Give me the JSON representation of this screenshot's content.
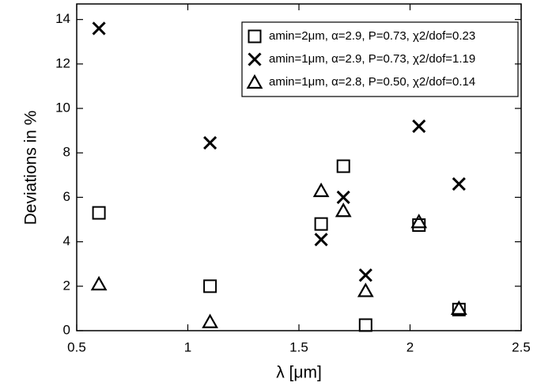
{
  "chart_data": {
    "type": "scatter",
    "xlabel": "λ [μm]",
    "ylabel": "Deviations in %",
    "xlim": [
      0.5,
      2.5
    ],
    "xticks": [
      0.5,
      1,
      1.5,
      2,
      2.5
    ],
    "ylim": [
      0,
      14.7
    ],
    "yticks": [
      0,
      2,
      4,
      6,
      8,
      10,
      12,
      14
    ],
    "legend": "upper right",
    "series": [
      {
        "name": "amin=2μm, α=2.9, P=0.73, χ2/dof=0.23",
        "marker": "square",
        "color": "#000000",
        "x": [
          0.6,
          1.1,
          1.6,
          1.7,
          1.8,
          2.04,
          2.22
        ],
        "values": [
          5.3,
          2.0,
          4.8,
          7.4,
          0.25,
          4.75,
          0.95
        ]
      },
      {
        "name": "amin=1μm, α=2.9, P=0.73, χ2/dof=1.19",
        "marker": "x",
        "color": "#000000",
        "x": [
          0.6,
          1.1,
          1.6,
          1.7,
          1.8,
          2.04,
          2.22
        ],
        "values": [
          13.6,
          8.45,
          4.1,
          6.0,
          2.5,
          9.2,
          6.6
        ]
      },
      {
        "name": "amin=1μm, α=2.8, P=0.50, χ2/dof=0.14",
        "marker": "triangle",
        "color": "#000000",
        "x": [
          0.6,
          1.1,
          1.6,
          1.7,
          1.8,
          2.04,
          2.22
        ],
        "values": [
          2.1,
          0.4,
          6.3,
          5.4,
          1.8,
          4.9,
          1.0
        ]
      }
    ]
  }
}
